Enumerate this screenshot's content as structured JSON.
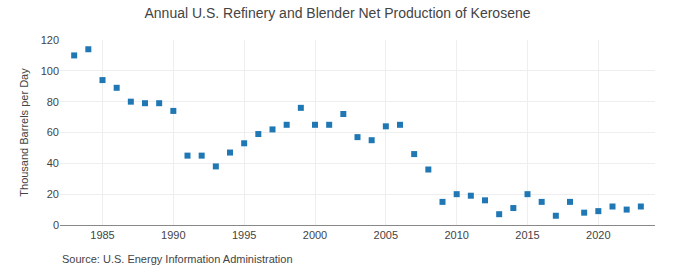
{
  "chart_data": {
    "type": "scatter",
    "title": "Annual U.S. Refinery and Blender Net Production of Kerosene",
    "ylabel": "Thousand Barrels per Day",
    "annotations": [
      "Source: U.S. Energy Information Administration"
    ],
    "marker": "square",
    "x": [
      1983,
      1984,
      1985,
      1986,
      1987,
      1988,
      1989,
      1990,
      1991,
      1992,
      1993,
      1994,
      1995,
      1996,
      1997,
      1998,
      1999,
      2000,
      2001,
      2002,
      2003,
      2004,
      2005,
      2006,
      2007,
      2008,
      2009,
      2010,
      2011,
      2012,
      2013,
      2014,
      2015,
      2016,
      2017,
      2018,
      2019,
      2020,
      2021,
      2022,
      2023
    ],
    "values": [
      110,
      114,
      94,
      89,
      80,
      79,
      79,
      74,
      45,
      45,
      38,
      47,
      53,
      59,
      62,
      65,
      76,
      65,
      65,
      72,
      57,
      55,
      64,
      65,
      46,
      36,
      15,
      20,
      19,
      16,
      7,
      11,
      20,
      15,
      6,
      15,
      8,
      9,
      12,
      10,
      12
    ],
    "xlim": [
      1982,
      2024
    ],
    "xticks": [
      1985,
      1990,
      1995,
      2000,
      2005,
      2010,
      2015,
      2020
    ],
    "ylim": [
      0,
      120
    ],
    "yticks": [
      0,
      20,
      40,
      60,
      80,
      100,
      120
    ],
    "grid": true
  }
}
